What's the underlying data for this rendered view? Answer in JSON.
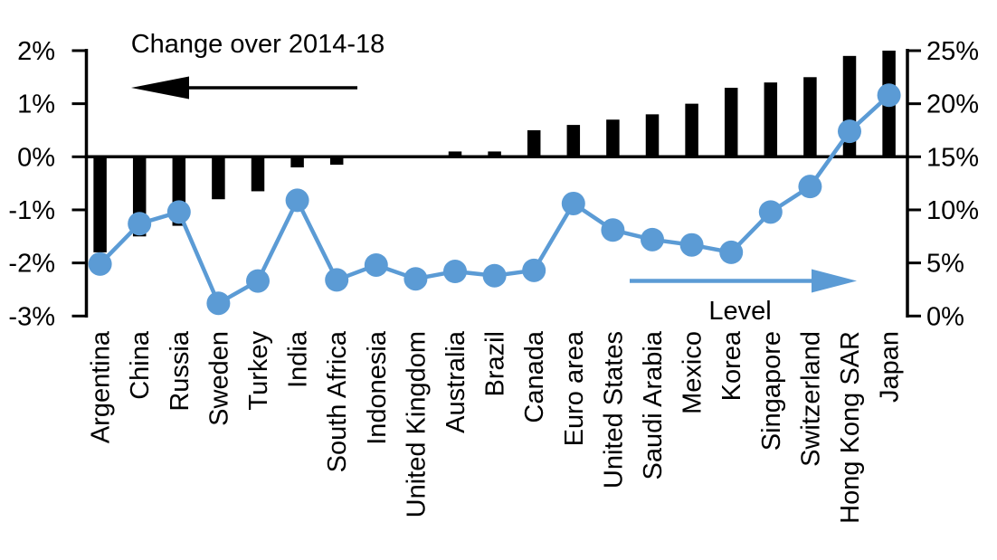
{
  "chart_data": {
    "type": "combo",
    "title": "Change over 2014-18",
    "categories": [
      "Argentina",
      "China",
      "Russia",
      "Sweden",
      "Turkey",
      "India",
      "South Africa",
      "Indonesia",
      "United Kingdom",
      "Australia",
      "Brazil",
      "Canada",
      "Euro area",
      "United States",
      "Saudi Arabia",
      "Mexico",
      "Korea",
      "Singapore",
      "Switzerland",
      "Hong Kong SAR",
      "Japan"
    ],
    "series": [
      {
        "name": "Change over 2014-18",
        "type": "bar",
        "axis": "left",
        "color": "#000000",
        "values": [
          -1.8,
          -1.5,
          -1.3,
          -0.8,
          -0.65,
          -0.2,
          -0.15,
          0,
          0,
          0.1,
          0.1,
          0.5,
          0.6,
          0.7,
          0.8,
          1.0,
          1.3,
          1.4,
          1.5,
          1.9,
          2.0
        ]
      },
      {
        "name": "Level",
        "type": "line",
        "axis": "right",
        "color": "#5B9BD5",
        "values": [
          4.9,
          8.7,
          9.8,
          1.2,
          3.3,
          10.9,
          3.4,
          4.8,
          3.5,
          4.2,
          3.8,
          4.3,
          10.6,
          8.1,
          7.2,
          6.7,
          6.0,
          9.8,
          12.2,
          17.4,
          20.8
        ]
      }
    ],
    "left_axis": {
      "range": [
        -3,
        2
      ],
      "ticks": [
        2,
        1,
        0,
        -1,
        -2,
        -3
      ],
      "tick_labels": [
        "2%",
        "1%",
        "0%",
        "-1%",
        "-2%",
        "-3%"
      ]
    },
    "right_axis": {
      "range": [
        0,
        25
      ],
      "ticks": [
        25,
        20,
        15,
        10,
        5,
        0
      ],
      "tick_labels": [
        "25%",
        "20%",
        "15%",
        "10%",
        "5%",
        "0%"
      ]
    },
    "annotations": {
      "bar_series_label": "Change over 2014-18",
      "bar_arrow_direction": "left",
      "line_series_label": "Level",
      "line_arrow_direction": "right"
    },
    "grid": false,
    "legend_position": "in-plot-annotations"
  }
}
